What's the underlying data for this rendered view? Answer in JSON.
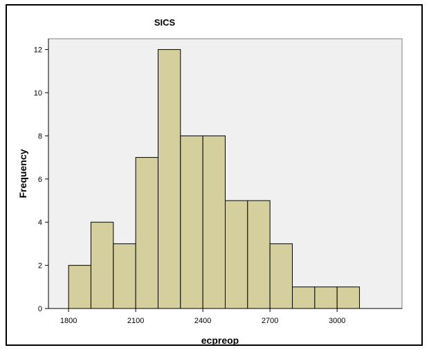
{
  "chart_data": {
    "type": "bar",
    "title": "SICS",
    "xlabel": "ecpreop",
    "ylabel": "Frequency",
    "bin_width": 100,
    "bins": [
      {
        "start": 1800,
        "end": 1900,
        "count": 2
      },
      {
        "start": 1900,
        "end": 2000,
        "count": 4
      },
      {
        "start": 2000,
        "end": 2100,
        "count": 3
      },
      {
        "start": 2100,
        "end": 2200,
        "count": 7
      },
      {
        "start": 2200,
        "end": 2300,
        "count": 12
      },
      {
        "start": 2300,
        "end": 2400,
        "count": 8
      },
      {
        "start": 2400,
        "end": 2500,
        "count": 8
      },
      {
        "start": 2500,
        "end": 2600,
        "count": 5
      },
      {
        "start": 2600,
        "end": 2700,
        "count": 5
      },
      {
        "start": 2700,
        "end": 2800,
        "count": 3
      },
      {
        "start": 2800,
        "end": 2900,
        "count": 1
      },
      {
        "start": 2900,
        "end": 3000,
        "count": 1
      },
      {
        "start": 3000,
        "end": 3100,
        "count": 1
      }
    ],
    "xlim": [
      1710,
      3290
    ],
    "ylim": [
      0,
      12.5
    ],
    "xticks": [
      1800,
      2100,
      2400,
      2700,
      3000
    ],
    "yticks": [
      0,
      2,
      4,
      6,
      8,
      10,
      12
    ],
    "grid": false,
    "colors": {
      "bar_fill": "#d4cf9c",
      "bar_stroke": "#000000",
      "plot_background": "#f0f0f0"
    }
  }
}
